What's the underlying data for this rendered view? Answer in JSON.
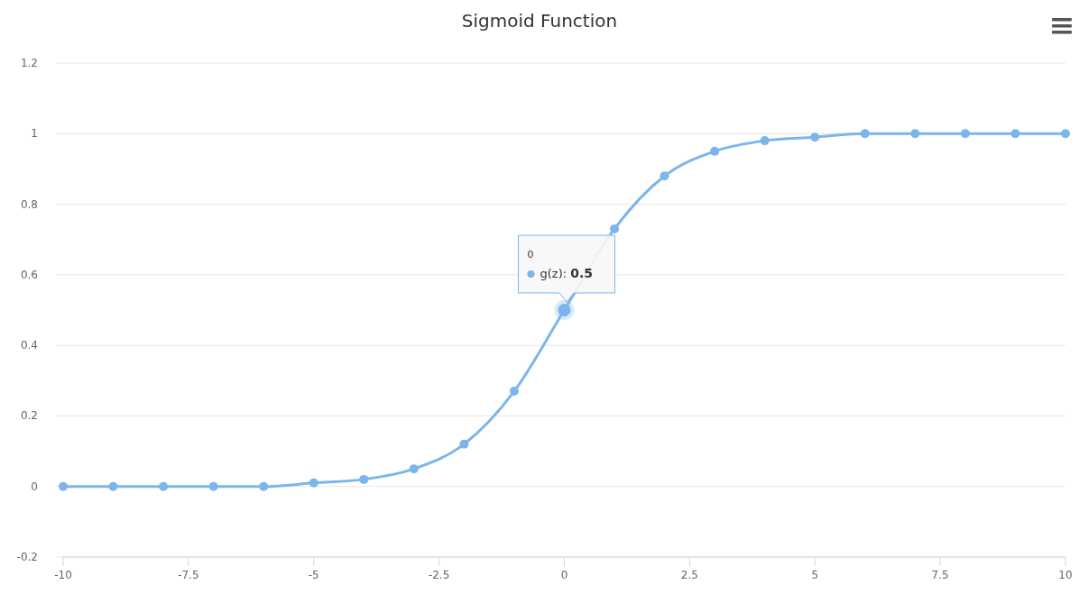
{
  "chart_data": {
    "type": "line",
    "title": "Sigmoid Function",
    "x": [
      -10,
      -9,
      -8,
      -7,
      -6,
      -5,
      -4,
      -3,
      -2,
      -1,
      0,
      1,
      2,
      3,
      4,
      5,
      6,
      7,
      8,
      9,
      10
    ],
    "series": [
      {
        "color": "#7cb5ec",
        "values": [
          0,
          0,
          0,
          0,
          0,
          0.01,
          0.02,
          0.05,
          0.12,
          0.27,
          0.5,
          0.73,
          0.88,
          0.95,
          0.98,
          0.99,
          1,
          1,
          1,
          1,
          1
        ]
      }
    ],
    "xlim": [
      -10,
      10
    ],
    "xticks": [
      -10,
      -7.5,
      -5,
      -2.5,
      0,
      2.5,
      5,
      7.5,
      10
    ],
    "ylim": [
      -0.2,
      1.2
    ],
    "yticks": [
      -0.2,
      0,
      0.2,
      0.4,
      0.6,
      0.8,
      1,
      1.2
    ],
    "annotations": [
      "0",
      "g(z): 0.5"
    ],
    "grid": "y",
    "marker": "circle",
    "line_style": "solid"
  }
}
